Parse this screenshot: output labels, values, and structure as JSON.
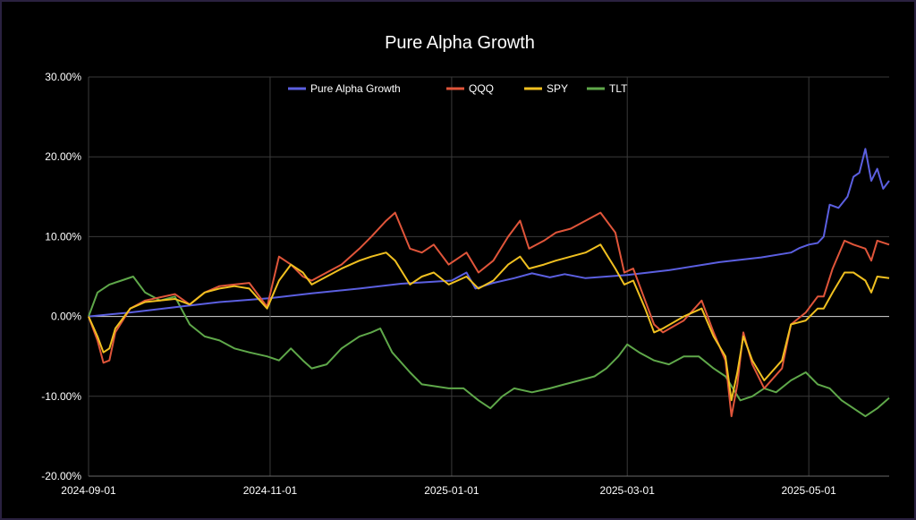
{
  "chart_data": {
    "type": "line",
    "title": "Pure Alpha Growth",
    "xlabel": "",
    "ylabel": "",
    "x_range": [
      "2024-09-01",
      "2025-05-28"
    ],
    "y_range": [
      -20,
      30
    ],
    "y_ticks": [
      30,
      20,
      10,
      0,
      -10,
      -20
    ],
    "y_tick_labels": [
      "30.00%",
      "20.00%",
      "10.00%",
      "0.00%",
      "-10.00%",
      "-20.00%"
    ],
    "x_ticks": [
      "2024-09-01",
      "2024-11-01",
      "2025-01-01",
      "2025-03-01",
      "2025-05-01"
    ],
    "x_tick_labels": [
      "2024-09-01",
      "2024-11-01",
      "2025-01-01",
      "2025-03-01",
      "2025-05-01"
    ],
    "grid": true,
    "legend_position": "top",
    "background": "#000000",
    "series": [
      {
        "name": "Pure Alpha Growth",
        "color": "#5b5fe0",
        "points": [
          [
            "2024-09-01",
            0
          ],
          [
            "2024-09-15",
            0.5
          ],
          [
            "2024-10-01",
            1.2
          ],
          [
            "2024-10-15",
            1.8
          ],
          [
            "2024-11-01",
            2.3
          ],
          [
            "2024-11-15",
            2.9
          ],
          [
            "2024-12-01",
            3.5
          ],
          [
            "2024-12-15",
            4.1
          ],
          [
            "2025-01-01",
            4.5
          ],
          [
            "2025-01-06",
            5.5
          ],
          [
            "2025-01-09",
            3.5
          ],
          [
            "2025-01-15",
            4.2
          ],
          [
            "2025-01-22",
            4.8
          ],
          [
            "2025-01-28",
            5.4
          ],
          [
            "2025-02-03",
            4.9
          ],
          [
            "2025-02-08",
            5.3
          ],
          [
            "2025-02-15",
            4.8
          ],
          [
            "2025-02-22",
            5.0
          ],
          [
            "2025-03-01",
            5.2
          ],
          [
            "2025-03-15",
            5.8
          ],
          [
            "2025-04-01",
            6.8
          ],
          [
            "2025-04-15",
            7.4
          ],
          [
            "2025-04-25",
            8.0
          ],
          [
            "2025-04-28",
            8.6
          ],
          [
            "2025-05-01",
            9.0
          ],
          [
            "2025-05-04",
            9.2
          ],
          [
            "2025-05-06",
            10.0
          ],
          [
            "2025-05-08",
            14.0
          ],
          [
            "2025-05-11",
            13.6
          ],
          [
            "2025-05-14",
            15.0
          ],
          [
            "2025-05-16",
            17.5
          ],
          [
            "2025-05-18",
            18.0
          ],
          [
            "2025-05-20",
            21.0
          ],
          [
            "2025-05-22",
            17.0
          ],
          [
            "2025-05-24",
            18.5
          ],
          [
            "2025-05-26",
            16.0
          ],
          [
            "2025-05-28",
            17.0
          ]
        ]
      },
      {
        "name": "QQQ",
        "color": "#e0553a",
        "points": [
          [
            "2024-09-01",
            0
          ],
          [
            "2024-09-04",
            -3.0
          ],
          [
            "2024-09-06",
            -5.8
          ],
          [
            "2024-09-08",
            -5.5
          ],
          [
            "2024-09-10",
            -2.0
          ],
          [
            "2024-09-15",
            1.0
          ],
          [
            "2024-09-20",
            2.0
          ],
          [
            "2024-09-30",
            2.8
          ],
          [
            "2024-10-05",
            1.5
          ],
          [
            "2024-10-10",
            3.0
          ],
          [
            "2024-10-15",
            3.8
          ],
          [
            "2024-10-20",
            4.0
          ],
          [
            "2024-10-25",
            4.2
          ],
          [
            "2024-10-31",
            1.2
          ],
          [
            "2024-11-04",
            7.5
          ],
          [
            "2024-11-08",
            6.5
          ],
          [
            "2024-11-12",
            5.0
          ],
          [
            "2024-11-15",
            4.5
          ],
          [
            "2024-11-20",
            5.5
          ],
          [
            "2024-11-25",
            6.5
          ],
          [
            "2024-12-01",
            8.5
          ],
          [
            "2024-12-05",
            10.0
          ],
          [
            "2024-12-10",
            12.0
          ],
          [
            "2024-12-13",
            13.0
          ],
          [
            "2024-12-18",
            8.5
          ],
          [
            "2024-12-22",
            8.0
          ],
          [
            "2024-12-26",
            9.0
          ],
          [
            "2024-12-31",
            6.5
          ],
          [
            "2025-01-06",
            8.0
          ],
          [
            "2025-01-10",
            5.5
          ],
          [
            "2025-01-15",
            7.0
          ],
          [
            "2025-01-20",
            10.0
          ],
          [
            "2025-01-24",
            12.0
          ],
          [
            "2025-01-27",
            8.5
          ],
          [
            "2025-02-01",
            9.5
          ],
          [
            "2025-02-05",
            10.5
          ],
          [
            "2025-02-10",
            11.0
          ],
          [
            "2025-02-15",
            12.0
          ],
          [
            "2025-02-20",
            13.0
          ],
          [
            "2025-02-25",
            10.5
          ],
          [
            "2025-02-28",
            5.5
          ],
          [
            "2025-03-03",
            6.0
          ],
          [
            "2025-03-07",
            2.0
          ],
          [
            "2025-03-10",
            -1.0
          ],
          [
            "2025-03-13",
            -2.0
          ],
          [
            "2025-03-20",
            -0.5
          ],
          [
            "2025-03-26",
            2.0
          ],
          [
            "2025-03-30",
            -2.0
          ],
          [
            "2025-04-03",
            -5.5
          ],
          [
            "2025-04-05",
            -12.5
          ],
          [
            "2025-04-07",
            -8.5
          ],
          [
            "2025-04-09",
            -2.0
          ],
          [
            "2025-04-12",
            -6.0
          ],
          [
            "2025-04-16",
            -9.0
          ],
          [
            "2025-04-22",
            -6.5
          ],
          [
            "2025-04-25",
            -1.0
          ],
          [
            "2025-04-30",
            0.5
          ],
          [
            "2025-05-04",
            2.5
          ],
          [
            "2025-05-06",
            2.5
          ],
          [
            "2025-05-09",
            6.0
          ],
          [
            "2025-05-13",
            9.5
          ],
          [
            "2025-05-16",
            9.0
          ],
          [
            "2025-05-20",
            8.5
          ],
          [
            "2025-05-22",
            7.0
          ],
          [
            "2025-05-24",
            9.5
          ],
          [
            "2025-05-28",
            9.0
          ]
        ]
      },
      {
        "name": "SPY",
        "color": "#f0c020",
        "points": [
          [
            "2024-09-01",
            0
          ],
          [
            "2024-09-04",
            -2.5
          ],
          [
            "2024-09-06",
            -4.5
          ],
          [
            "2024-09-08",
            -4.0
          ],
          [
            "2024-09-10",
            -1.5
          ],
          [
            "2024-09-15",
            1.0
          ],
          [
            "2024-09-20",
            1.8
          ],
          [
            "2024-09-30",
            2.2
          ],
          [
            "2024-10-05",
            1.5
          ],
          [
            "2024-10-10",
            3.0
          ],
          [
            "2024-10-15",
            3.5
          ],
          [
            "2024-10-20",
            3.8
          ],
          [
            "2024-10-25",
            3.5
          ],
          [
            "2024-10-31",
            1.0
          ],
          [
            "2024-11-04",
            4.5
          ],
          [
            "2024-11-08",
            6.5
          ],
          [
            "2024-11-12",
            5.5
          ],
          [
            "2024-11-15",
            4.0
          ],
          [
            "2024-11-20",
            5.0
          ],
          [
            "2024-11-25",
            6.0
          ],
          [
            "2024-12-01",
            7.0
          ],
          [
            "2024-12-05",
            7.5
          ],
          [
            "2024-12-10",
            8.0
          ],
          [
            "2024-12-13",
            7.0
          ],
          [
            "2024-12-18",
            4.0
          ],
          [
            "2024-12-22",
            5.0
          ],
          [
            "2024-12-26",
            5.5
          ],
          [
            "2024-12-31",
            4.0
          ],
          [
            "2025-01-06",
            5.0
          ],
          [
            "2025-01-10",
            3.5
          ],
          [
            "2025-01-15",
            4.5
          ],
          [
            "2025-01-20",
            6.5
          ],
          [
            "2025-01-24",
            7.5
          ],
          [
            "2025-01-27",
            6.0
          ],
          [
            "2025-02-01",
            6.5
          ],
          [
            "2025-02-05",
            7.0
          ],
          [
            "2025-02-10",
            7.5
          ],
          [
            "2025-02-15",
            8.0
          ],
          [
            "2025-02-20",
            9.0
          ],
          [
            "2025-02-25",
            6.0
          ],
          [
            "2025-02-28",
            4.0
          ],
          [
            "2025-03-03",
            4.5
          ],
          [
            "2025-03-07",
            1.0
          ],
          [
            "2025-03-10",
            -2.0
          ],
          [
            "2025-03-13",
            -1.5
          ],
          [
            "2025-03-20",
            0.0
          ],
          [
            "2025-03-26",
            1.0
          ],
          [
            "2025-03-30",
            -2.5
          ],
          [
            "2025-04-03",
            -5.0
          ],
          [
            "2025-04-05",
            -10.5
          ],
          [
            "2025-04-07",
            -7.0
          ],
          [
            "2025-04-09",
            -2.5
          ],
          [
            "2025-04-12",
            -5.5
          ],
          [
            "2025-04-16",
            -8.0
          ],
          [
            "2025-04-22",
            -5.5
          ],
          [
            "2025-04-25",
            -1.0
          ],
          [
            "2025-04-30",
            -0.5
          ],
          [
            "2025-05-04",
            1.0
          ],
          [
            "2025-05-06",
            1.0
          ],
          [
            "2025-05-09",
            3.0
          ],
          [
            "2025-05-13",
            5.5
          ],
          [
            "2025-05-16",
            5.5
          ],
          [
            "2025-05-20",
            4.5
          ],
          [
            "2025-05-22",
            3.0
          ],
          [
            "2025-05-24",
            5.0
          ],
          [
            "2025-05-28",
            4.8
          ]
        ]
      },
      {
        "name": "TLT",
        "color": "#5fa84a",
        "points": [
          [
            "2024-09-01",
            0
          ],
          [
            "2024-09-04",
            3.0
          ],
          [
            "2024-09-08",
            4.0
          ],
          [
            "2024-09-12",
            4.5
          ],
          [
            "2024-09-16",
            5.0
          ],
          [
            "2024-09-20",
            3.0
          ],
          [
            "2024-09-25",
            2.0
          ],
          [
            "2024-09-30",
            2.5
          ],
          [
            "2024-10-05",
            -1.0
          ],
          [
            "2024-10-10",
            -2.5
          ],
          [
            "2024-10-15",
            -3.0
          ],
          [
            "2024-10-20",
            -4.0
          ],
          [
            "2024-10-25",
            -4.5
          ],
          [
            "2024-10-31",
            -5.0
          ],
          [
            "2024-11-04",
            -5.5
          ],
          [
            "2024-11-08",
            -4.0
          ],
          [
            "2024-11-12",
            -5.5
          ],
          [
            "2024-11-15",
            -6.5
          ],
          [
            "2024-11-20",
            -6.0
          ],
          [
            "2024-11-25",
            -4.0
          ],
          [
            "2024-12-01",
            -2.5
          ],
          [
            "2024-12-05",
            -2.0
          ],
          [
            "2024-12-08",
            -1.5
          ],
          [
            "2024-12-12",
            -4.5
          ],
          [
            "2024-12-18",
            -7.0
          ],
          [
            "2024-12-22",
            -8.5
          ],
          [
            "2024-12-31",
            -9.0
          ],
          [
            "2025-01-05",
            -9.0
          ],
          [
            "2025-01-10",
            -10.5
          ],
          [
            "2025-01-14",
            -11.5
          ],
          [
            "2025-01-18",
            -10.0
          ],
          [
            "2025-01-22",
            -9.0
          ],
          [
            "2025-01-28",
            -9.5
          ],
          [
            "2025-02-03",
            -9.0
          ],
          [
            "2025-02-08",
            -8.5
          ],
          [
            "2025-02-13",
            -8.0
          ],
          [
            "2025-02-18",
            -7.5
          ],
          [
            "2025-02-22",
            -6.5
          ],
          [
            "2025-02-26",
            -5.0
          ],
          [
            "2025-03-01",
            -3.5
          ],
          [
            "2025-03-05",
            -4.5
          ],
          [
            "2025-03-10",
            -5.5
          ],
          [
            "2025-03-15",
            -6.0
          ],
          [
            "2025-03-20",
            -5.0
          ],
          [
            "2025-03-25",
            -5.0
          ],
          [
            "2025-03-30",
            -6.5
          ],
          [
            "2025-04-03",
            -7.5
          ],
          [
            "2025-04-08",
            -10.5
          ],
          [
            "2025-04-12",
            -10.0
          ],
          [
            "2025-04-16",
            -9.0
          ],
          [
            "2025-04-20",
            -9.5
          ],
          [
            "2025-04-25",
            -8.0
          ],
          [
            "2025-04-30",
            -7.0
          ],
          [
            "2025-05-04",
            -8.5
          ],
          [
            "2025-05-08",
            -9.0
          ],
          [
            "2025-05-12",
            -10.5
          ],
          [
            "2025-05-16",
            -11.5
          ],
          [
            "2025-05-20",
            -12.5
          ],
          [
            "2025-05-24",
            -11.5
          ],
          [
            "2025-05-28",
            -10.2
          ]
        ]
      }
    ]
  }
}
